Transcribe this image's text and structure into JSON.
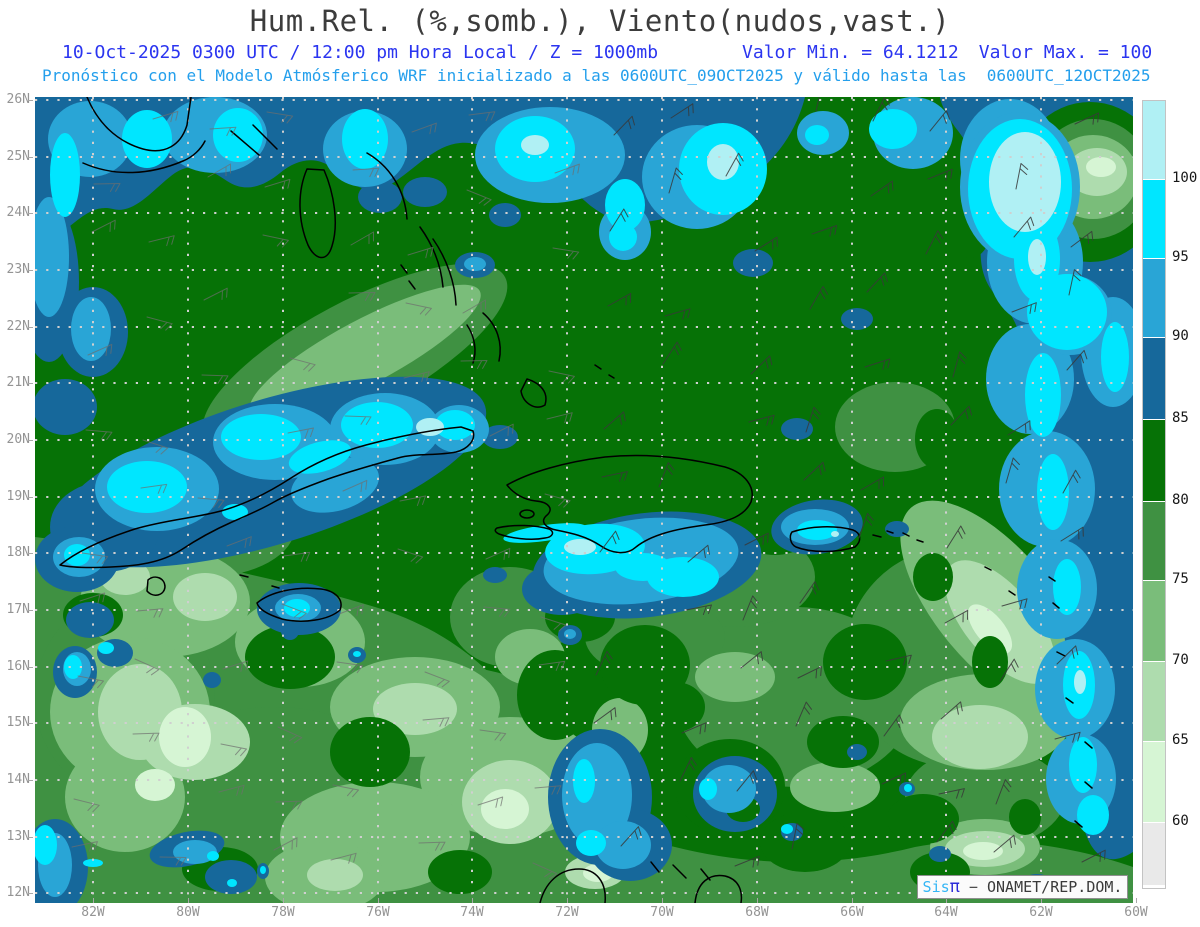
{
  "header": {
    "title": "Hum.Rel. (%,somb.), Viento(nudos,vast.)",
    "line2_left": "10-Oct-2025 0300 UTC / 12:00 pm Hora Local / Z = 1000mb",
    "line2_min": "Valor Min. = 64.1212",
    "line2_max": "Valor Max. = 100",
    "line3_a": "Pronóstico con el Modelo Atmósferico WRF inicializado a las 0600UTC_09OCT2025 y válido hasta las",
    "line3_b": "0600UTC_12OCT2025"
  },
  "map": {
    "lat_labels": [
      "26N",
      "25N",
      "24N",
      "23N",
      "22N",
      "21N",
      "20N",
      "19N",
      "18N",
      "17N",
      "16N",
      "15N",
      "14N",
      "13N",
      "12N"
    ],
    "lon_labels": [
      "82W",
      "80W",
      "78W",
      "76W",
      "74W",
      "72W",
      "70W",
      "68W",
      "66W",
      "64W",
      "62W",
      "60W"
    ]
  },
  "colorbar": {
    "labels": [
      "100",
      "95",
      "90",
      "85",
      "80",
      "75",
      "70",
      "65",
      "60"
    ],
    "colors": [
      "#b0f0f4",
      "#00e6ff",
      "#29a5d6",
      "#16689b",
      "#067206",
      "#3f9142",
      "#7abd7a",
      "#aedcae",
      "#d6f5d4",
      "#e9e9e9"
    ]
  },
  "palette": {
    "rh_100_plus": "#b0f0f4",
    "rh_95_100": "#00e6ff",
    "rh_90_95": "#29a5d6",
    "rh_85_90": "#16689b",
    "rh_80_85": "#067206",
    "rh_75_80": "#3f9142",
    "rh_70_75": "#7abd7a",
    "rh_65_70": "#aedcae",
    "rh_60_65": "#d6f5d4",
    "rh_below_60": "#e9e9e9",
    "header_blue": "#2b35f0",
    "header_cyan": "#249fec",
    "axis_gray": "#949494"
  },
  "watermark": {
    "sis": "Sis",
    "pi": "π",
    "sep": "−",
    "org": "ONAMET/REP.DOM."
  }
}
